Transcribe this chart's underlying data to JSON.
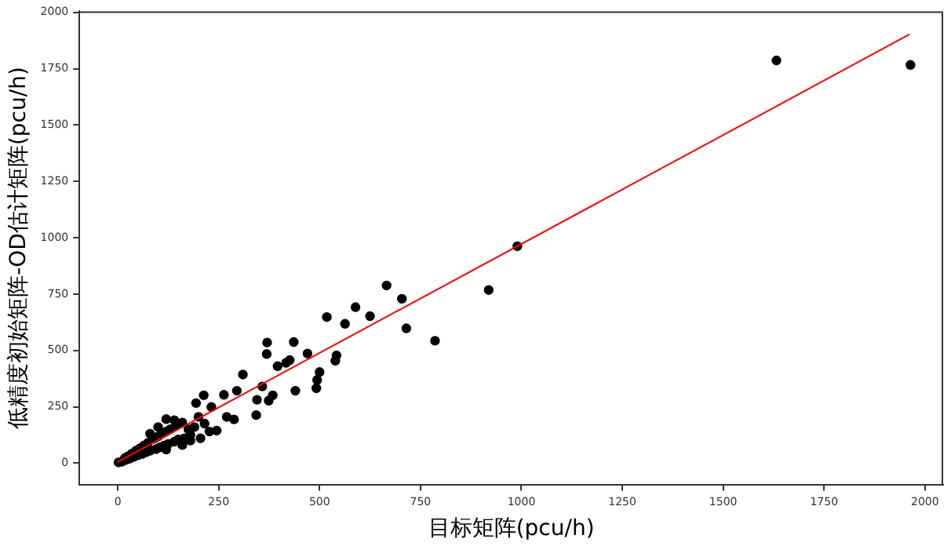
{
  "chart_data": {
    "type": "scatter",
    "xlabel": "目标矩阵(pcu/h)",
    "ylabel": "低精度初始矩阵-OD估计矩阵(pcu/h)",
    "xlim": [
      -95,
      2045
    ],
    "ylim": [
      -95,
      2005
    ],
    "xticks": [
      0,
      250,
      500,
      750,
      1000,
      1250,
      1500,
      1750,
      2000
    ],
    "yticks": [
      0,
      250,
      500,
      750,
      1000,
      1250,
      1500,
      1750,
      2000
    ],
    "grid": false,
    "legend": false,
    "marker": "circle",
    "series": [
      {
        "color": "#000000",
        "x": [
          1632,
          1964,
          990,
          919,
          786,
          715,
          704,
          666,
          625,
          589,
          563,
          518,
          542,
          539,
          500,
          494,
          492,
          470,
          436,
          370,
          369,
          440,
          426,
          417,
          396,
          384,
          358,
          310,
          345,
          343,
          374,
          288,
          245,
          227,
          213,
          194,
          263,
          295,
          232,
          270,
          2,
          10,
          18,
          20,
          25,
          30,
          35,
          40,
          45,
          50,
          55,
          60,
          65,
          70,
          75,
          80,
          90,
          95,
          100,
          105,
          110,
          115,
          120,
          125,
          130,
          140,
          145,
          150,
          160,
          165,
          175,
          180,
          190,
          200,
          205,
          215,
          160,
          120,
          140,
          180,
          120,
          100,
          80
        ],
        "values": [
          1787,
          1767,
          962,
          768,
          543,
          598,
          729,
          788,
          652,
          692,
          618,
          648,
          478,
          454,
          404,
          369,
          332,
          486,
          537,
          535,
          484,
          321,
          457,
          445,
          430,
          301,
          340,
          393,
          281,
          213,
          277,
          194,
          144,
          140,
          301,
          266,
          303,
          321,
          249,
          205,
          3,
          6,
          22,
          14,
          30,
          20,
          42,
          28,
          55,
          35,
          66,
          40,
          78,
          48,
          90,
          55,
          108,
          62,
          118,
          70,
          130,
          78,
          140,
          85,
          150,
          95,
          168,
          105,
          180,
          110,
          150,
          125,
          160,
          205,
          110,
          175,
          80,
          60,
          190,
          100,
          195,
          160,
          130
        ]
      },
      {
        "type": "line",
        "color": "#ff0000",
        "x": [
          0,
          1962
        ],
        "values": [
          5,
          1903
        ],
        "marker": "none"
      }
    ]
  }
}
